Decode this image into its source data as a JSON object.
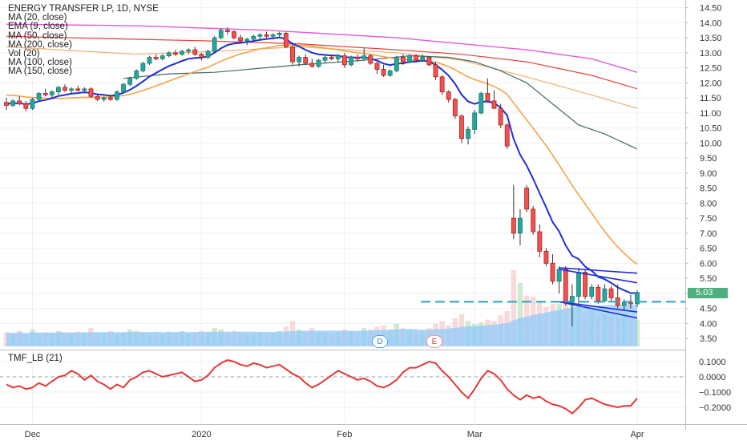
{
  "chart_data": [
    {
      "type": "candlestick",
      "title": "ENERGY TRANSFER LP, 1D, NYSE",
      "indicators": [
        "MA (20, close)",
        "EMA (9, close)",
        "MA (50, close)",
        "MA (200, close)",
        "Vol (20)",
        "MA (100, close)",
        "MA (150, close)"
      ],
      "y_ticks": [
        "14.50",
        "14.00",
        "13.50",
        "13.00",
        "12.50",
        "12.00",
        "11.50",
        "11.00",
        "10.50",
        "10.00",
        "9.50",
        "9.00",
        "8.50",
        "8.00",
        "7.50",
        "7.00",
        "6.50",
        "6.00",
        "5.50",
        "5.00",
        "4.50",
        "4.00",
        "3.50"
      ],
      "x_ticks": [
        "Dec",
        "2020",
        "Feb",
        "Mar",
        "Apr"
      ],
      "ylim": [
        3.3,
        14.6
      ],
      "last_price": "5.03",
      "reference_line": 4.72,
      "markers": [
        "D",
        "E"
      ],
      "colors": {
        "up": "#26a69a",
        "down": "#ef5350",
        "ema9": "#1f2fd6",
        "ma20": "#f7a14a",
        "ma50": "#e0443a",
        "ma100": "#f0b070",
        "ma150": "#456a63",
        "ma200": "#e35bd8",
        "volume": "#90caf9",
        "ref": "#29a0c4"
      },
      "ohlc": [
        [
          11.35,
          11.5,
          11.1,
          11.25
        ],
        [
          11.25,
          11.45,
          11.2,
          11.4
        ],
        [
          11.4,
          11.55,
          11.25,
          11.3
        ],
        [
          11.3,
          11.4,
          11.05,
          11.15
        ],
        [
          11.15,
          11.5,
          11.1,
          11.45
        ],
        [
          11.45,
          11.7,
          11.4,
          11.65
        ],
        [
          11.65,
          11.8,
          11.55,
          11.6
        ],
        [
          11.6,
          11.75,
          11.5,
          11.7
        ],
        [
          11.7,
          11.9,
          11.6,
          11.85
        ],
        [
          11.85,
          11.95,
          11.7,
          11.75
        ],
        [
          11.75,
          11.85,
          11.65,
          11.8
        ],
        [
          11.8,
          11.9,
          11.7,
          11.75
        ],
        [
          11.75,
          11.85,
          11.65,
          11.8
        ],
        [
          11.8,
          11.85,
          11.5,
          11.55
        ],
        [
          11.55,
          11.6,
          11.4,
          11.45
        ],
        [
          11.45,
          11.55,
          11.38,
          11.5
        ],
        [
          11.5,
          11.6,
          11.4,
          11.45
        ],
        [
          11.45,
          11.75,
          11.4,
          11.7
        ],
        [
          11.7,
          12.0,
          11.65,
          11.95
        ],
        [
          11.95,
          12.2,
          11.9,
          12.15
        ],
        [
          12.15,
          12.45,
          12.1,
          12.4
        ],
        [
          12.4,
          12.7,
          12.35,
          12.65
        ],
        [
          12.65,
          12.9,
          12.6,
          12.85
        ],
        [
          12.85,
          12.95,
          12.75,
          12.8
        ],
        [
          12.8,
          12.95,
          12.75,
          12.9
        ],
        [
          12.9,
          13.05,
          12.85,
          13.0
        ],
        [
          13.0,
          13.1,
          12.9,
          12.95
        ],
        [
          12.95,
          13.1,
          12.9,
          13.05
        ],
        [
          13.05,
          13.15,
          12.95,
          13.1
        ],
        [
          13.1,
          13.2,
          12.9,
          12.95
        ],
        [
          12.95,
          13.0,
          12.75,
          12.85
        ],
        [
          12.85,
          13.1,
          12.8,
          13.05
        ],
        [
          13.05,
          13.55,
          13.0,
          13.5
        ],
        [
          13.5,
          13.8,
          13.45,
          13.75
        ],
        [
          13.75,
          13.85,
          13.6,
          13.7
        ],
        [
          13.7,
          13.75,
          13.45,
          13.5
        ],
        [
          13.5,
          13.6,
          13.3,
          13.4
        ],
        [
          13.4,
          13.5,
          13.25,
          13.45
        ],
        [
          13.45,
          13.6,
          13.4,
          13.55
        ],
        [
          13.55,
          13.65,
          13.45,
          13.6
        ],
        [
          13.6,
          13.7,
          13.5,
          13.55
        ],
        [
          13.55,
          13.65,
          13.45,
          13.6
        ],
        [
          13.6,
          13.7,
          13.5,
          13.65
        ],
        [
          13.65,
          13.7,
          13.15,
          13.2
        ],
        [
          13.2,
          13.25,
          12.6,
          12.7
        ],
        [
          12.7,
          12.9,
          12.55,
          12.85
        ],
        [
          12.85,
          12.95,
          12.6,
          12.65
        ],
        [
          12.65,
          12.8,
          12.5,
          12.55
        ],
        [
          12.55,
          12.8,
          12.5,
          12.75
        ],
        [
          12.75,
          12.9,
          12.65,
          12.85
        ],
        [
          12.85,
          12.95,
          12.75,
          12.8
        ],
        [
          12.8,
          12.95,
          12.7,
          12.9
        ],
        [
          12.9,
          13.0,
          12.5,
          12.6
        ],
        [
          12.6,
          12.9,
          12.55,
          12.85
        ],
        [
          12.85,
          12.95,
          12.7,
          12.8
        ],
        [
          12.8,
          13.15,
          12.75,
          12.9
        ],
        [
          12.9,
          12.95,
          12.6,
          12.65
        ],
        [
          12.65,
          12.7,
          12.3,
          12.45
        ],
        [
          12.45,
          12.6,
          12.2,
          12.25
        ],
        [
          12.25,
          12.45,
          12.2,
          12.4
        ],
        [
          12.4,
          12.9,
          12.35,
          12.85
        ],
        [
          12.85,
          12.95,
          12.6,
          12.7
        ],
        [
          12.7,
          12.95,
          12.65,
          12.9
        ],
        [
          12.9,
          12.95,
          12.7,
          12.75
        ],
        [
          12.75,
          12.95,
          12.7,
          12.85
        ],
        [
          12.85,
          12.9,
          12.55,
          12.6
        ],
        [
          12.6,
          12.7,
          12.1,
          12.2
        ],
        [
          12.2,
          12.25,
          11.6,
          11.7
        ],
        [
          11.7,
          11.75,
          11.35,
          11.45
        ],
        [
          11.45,
          11.5,
          10.8,
          10.9
        ],
        [
          10.9,
          10.95,
          10.0,
          10.15
        ],
        [
          10.15,
          10.55,
          9.95,
          10.45
        ],
        [
          10.45,
          11.1,
          10.3,
          11.0
        ],
        [
          11.0,
          11.7,
          10.95,
          11.65
        ],
        [
          11.65,
          12.15,
          11.5,
          11.4
        ],
        [
          11.4,
          11.75,
          11.2,
          11.15
        ],
        [
          11.15,
          11.3,
          10.5,
          10.6
        ],
        [
          10.6,
          10.65,
          9.8,
          9.9
        ],
        [
          7.5,
          8.6,
          6.8,
          7.0
        ],
        [
          7.0,
          7.8,
          6.6,
          7.5
        ],
        [
          8.5,
          8.6,
          7.7,
          7.8
        ],
        [
          7.8,
          7.9,
          6.95,
          7.05
        ],
        [
          7.05,
          7.3,
          6.2,
          6.4
        ],
        [
          6.4,
          6.5,
          5.9,
          6.0
        ],
        [
          6.0,
          6.3,
          5.3,
          5.4
        ],
        [
          5.4,
          5.9,
          5.0,
          5.8
        ],
        [
          5.8,
          5.9,
          4.6,
          4.7
        ],
        [
          4.7,
          5.3,
          3.9,
          4.9
        ],
        [
          4.9,
          5.85,
          4.6,
          5.7
        ],
        [
          5.7,
          5.8,
          4.8,
          4.9
        ],
        [
          4.9,
          5.3,
          4.8,
          5.2
        ],
        [
          5.2,
          5.3,
          4.65,
          4.75
        ],
        [
          4.75,
          5.3,
          4.7,
          5.15
        ],
        [
          5.15,
          5.25,
          4.75,
          4.85
        ],
        [
          4.85,
          5.3,
          4.5,
          4.6
        ],
        [
          4.6,
          4.8,
          4.45,
          4.7
        ],
        [
          4.7,
          4.95,
          4.5,
          4.65
        ],
        [
          4.65,
          5.1,
          4.55,
          5.03
        ]
      ],
      "volume": [
        1.0,
        0.9,
        1.1,
        0.8,
        1.2,
        0.9,
        1.0,
        0.95,
        1.1,
        1.0,
        0.9,
        1.05,
        1.0,
        1.3,
        0.9,
        1.0,
        1.1,
        0.9,
        1.0,
        1.2,
        1.1,
        1.0,
        0.95,
        1.0,
        0.9,
        1.05,
        1.0,
        1.1,
        0.9,
        1.0,
        1.1,
        1.0,
        1.3,
        1.2,
        1.0,
        1.1,
        1.0,
        0.9,
        1.0,
        1.0,
        0.95,
        1.0,
        1.1,
        1.4,
        1.8,
        1.2,
        1.1,
        1.3,
        1.0,
        1.0,
        0.9,
        1.0,
        1.2,
        1.1,
        1.0,
        1.3,
        1.2,
        1.4,
        1.5,
        1.2,
        1.6,
        1.3,
        1.2,
        1.1,
        1.1,
        1.3,
        1.6,
        1.8,
        1.5,
        2.0,
        2.3,
        1.8,
        1.6,
        1.7,
        1.9,
        1.8,
        2.2,
        2.5,
        5.4,
        4.5,
        3.6,
        3.5,
        3.2,
        2.8,
        3.0,
        3.0,
        3.3,
        3.6,
        3.0,
        2.4,
        2.5,
        2.2,
        2.3,
        2.1,
        2.0,
        2.2,
        2.0,
        1.9
      ],
      "ema9": [
        11.3,
        11.32,
        11.32,
        11.29,
        11.32,
        11.39,
        11.43,
        11.49,
        11.56,
        11.6,
        11.64,
        11.66,
        11.69,
        11.66,
        11.62,
        11.6,
        11.57,
        11.6,
        11.67,
        11.77,
        11.9,
        12.05,
        12.21,
        12.33,
        12.45,
        12.56,
        12.64,
        12.73,
        12.8,
        12.83,
        12.84,
        12.88,
        13.0,
        13.15,
        13.26,
        13.31,
        13.33,
        13.36,
        13.39,
        13.43,
        13.46,
        13.48,
        13.51,
        13.45,
        13.3,
        13.21,
        13.1,
        13.0,
        12.95,
        12.93,
        12.91,
        12.91,
        12.85,
        12.85,
        12.84,
        12.85,
        12.81,
        12.74,
        12.64,
        12.59,
        12.64,
        12.65,
        12.7,
        12.71,
        12.74,
        12.71,
        12.6,
        12.44,
        12.24,
        11.97,
        11.61,
        11.38,
        11.3,
        11.37,
        11.38,
        11.33,
        11.18,
        10.92,
        10.14,
        9.61,
        9.25,
        8.81,
        8.33,
        7.86,
        7.37,
        7.06,
        6.59,
        6.25,
        6.14,
        5.89,
        5.75,
        5.55,
        5.47,
        5.35,
        5.2,
        5.1,
        5.01,
        5.01
      ],
      "ma20": [
        11.6,
        11.58,
        11.56,
        11.53,
        11.51,
        11.5,
        11.49,
        11.48,
        11.48,
        11.49,
        11.5,
        11.51,
        11.52,
        11.52,
        11.52,
        11.52,
        11.53,
        11.55,
        11.58,
        11.62,
        11.68,
        11.75,
        11.82,
        11.9,
        11.98,
        12.06,
        12.14,
        12.22,
        12.3,
        12.38,
        12.45,
        12.52,
        12.62,
        12.72,
        12.81,
        12.89,
        12.96,
        13.02,
        13.08,
        13.13,
        13.17,
        13.21,
        13.24,
        13.26,
        13.26,
        13.25,
        13.24,
        13.22,
        13.19,
        13.16,
        13.13,
        13.1,
        13.06,
        13.03,
        13.0,
        12.98,
        12.95,
        12.91,
        12.87,
        12.83,
        12.8,
        12.78,
        12.77,
        12.76,
        12.75,
        12.73,
        12.69,
        12.62,
        12.54,
        12.44,
        12.31,
        12.2,
        12.11,
        12.04,
        11.97,
        11.88,
        11.77,
        11.62,
        11.33,
        11.05,
        10.77,
        10.49,
        10.2,
        9.91,
        9.59,
        9.27,
        8.93,
        8.59,
        8.28,
        7.97,
        7.67,
        7.35,
        7.06,
        6.79,
        6.54,
        6.33,
        6.13,
        5.97
      ]
    },
    {
      "type": "line",
      "title": "TMF_LB (21)",
      "y_ticks": [
        "0.1000",
        "0.0000",
        "−0.1000",
        "−0.2000"
      ],
      "ylim": [
        -0.26,
        0.14
      ],
      "color": "#e53935",
      "values": [
        -0.05,
        -0.07,
        -0.06,
        -0.08,
        -0.07,
        -0.04,
        -0.06,
        -0.03,
        0.0,
        0.01,
        0.04,
        0.02,
        -0.02,
        0.01,
        -0.03,
        -0.05,
        -0.08,
        -0.05,
        -0.07,
        -0.02,
        0.0,
        0.03,
        0.04,
        0.02,
        0.0,
        0.01,
        0.02,
        0.03,
        0.0,
        -0.03,
        -0.02,
        0.01,
        0.06,
        0.09,
        0.11,
        0.1,
        0.08,
        0.07,
        0.09,
        0.08,
        0.06,
        0.07,
        0.08,
        0.05,
        0.02,
        0.0,
        -0.04,
        -0.07,
        -0.05,
        -0.02,
        0.01,
        0.04,
        0.02,
        0.0,
        -0.02,
        -0.01,
        -0.03,
        -0.06,
        -0.07,
        -0.05,
        -0.02,
        0.03,
        0.06,
        0.06,
        0.08,
        0.1,
        0.09,
        0.04,
        0.0,
        -0.05,
        -0.1,
        -0.14,
        -0.08,
        -0.01,
        0.04,
        0.02,
        -0.02,
        -0.08,
        -0.12,
        -0.15,
        -0.12,
        -0.14,
        -0.13,
        -0.16,
        -0.18,
        -0.19,
        -0.21,
        -0.24,
        -0.2,
        -0.15,
        -0.14,
        -0.16,
        -0.18,
        -0.19,
        -0.2,
        -0.19,
        -0.19,
        -0.14
      ]
    }
  ]
}
